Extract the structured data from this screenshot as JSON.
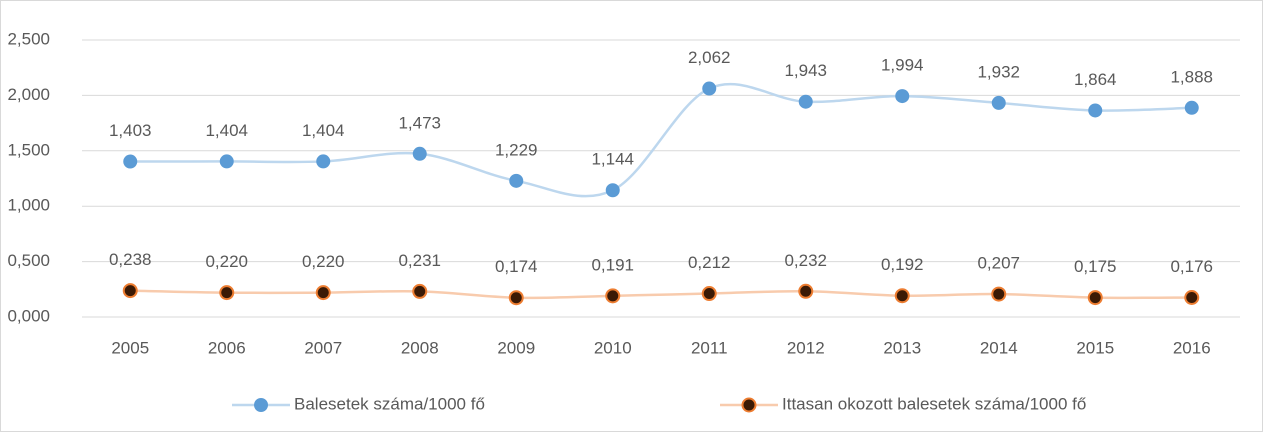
{
  "chart_data": {
    "type": "line",
    "categories": [
      "2005",
      "2006",
      "2007",
      "2008",
      "2009",
      "2010",
      "2011",
      "2012",
      "2013",
      "2014",
      "2015",
      "2016"
    ],
    "series": [
      {
        "name": "Balesetek száma/1000 fő",
        "color": "#5b9bd5",
        "line_color": "#bdd7ee",
        "values": [
          1.403,
          1.404,
          1.404,
          1.473,
          1.229,
          1.144,
          2.062,
          1.943,
          1.994,
          1.932,
          1.864,
          1.888
        ],
        "value_labels": [
          "1,403",
          "1,404",
          "1,404",
          "1,473",
          "1,229",
          "1,144",
          "2,062",
          "1,943",
          "1,994",
          "1,932",
          "1,864",
          "1,888"
        ]
      },
      {
        "name": "Ittasan okozott balesetek száma/1000 fő",
        "color": "#3b1a05",
        "edge_color": "#ed7d31",
        "line_color": "#f8cbad",
        "values": [
          0.238,
          0.22,
          0.22,
          0.231,
          0.174,
          0.191,
          0.212,
          0.232,
          0.192,
          0.207,
          0.175,
          0.176
        ],
        "value_labels": [
          "0,238",
          "0,220",
          "0,220",
          "0,231",
          "0,174",
          "0,191",
          "0,212",
          "0,232",
          "0,192",
          "0,207",
          "0,175",
          "0,176"
        ]
      }
    ],
    "ylim": [
      0,
      2.5
    ],
    "yticks": [
      {
        "value": 0,
        "label": "0,000"
      },
      {
        "value": 0.5,
        "label": "0,500"
      },
      {
        "value": 1,
        "label": "1,000"
      },
      {
        "value": 1.5,
        "label": "1,500"
      },
      {
        "value": 2,
        "label": "2,000"
      },
      {
        "value": 2.5,
        "label": "2,500"
      }
    ],
    "grid": true,
    "smooth": true,
    "legend": "bottom"
  }
}
